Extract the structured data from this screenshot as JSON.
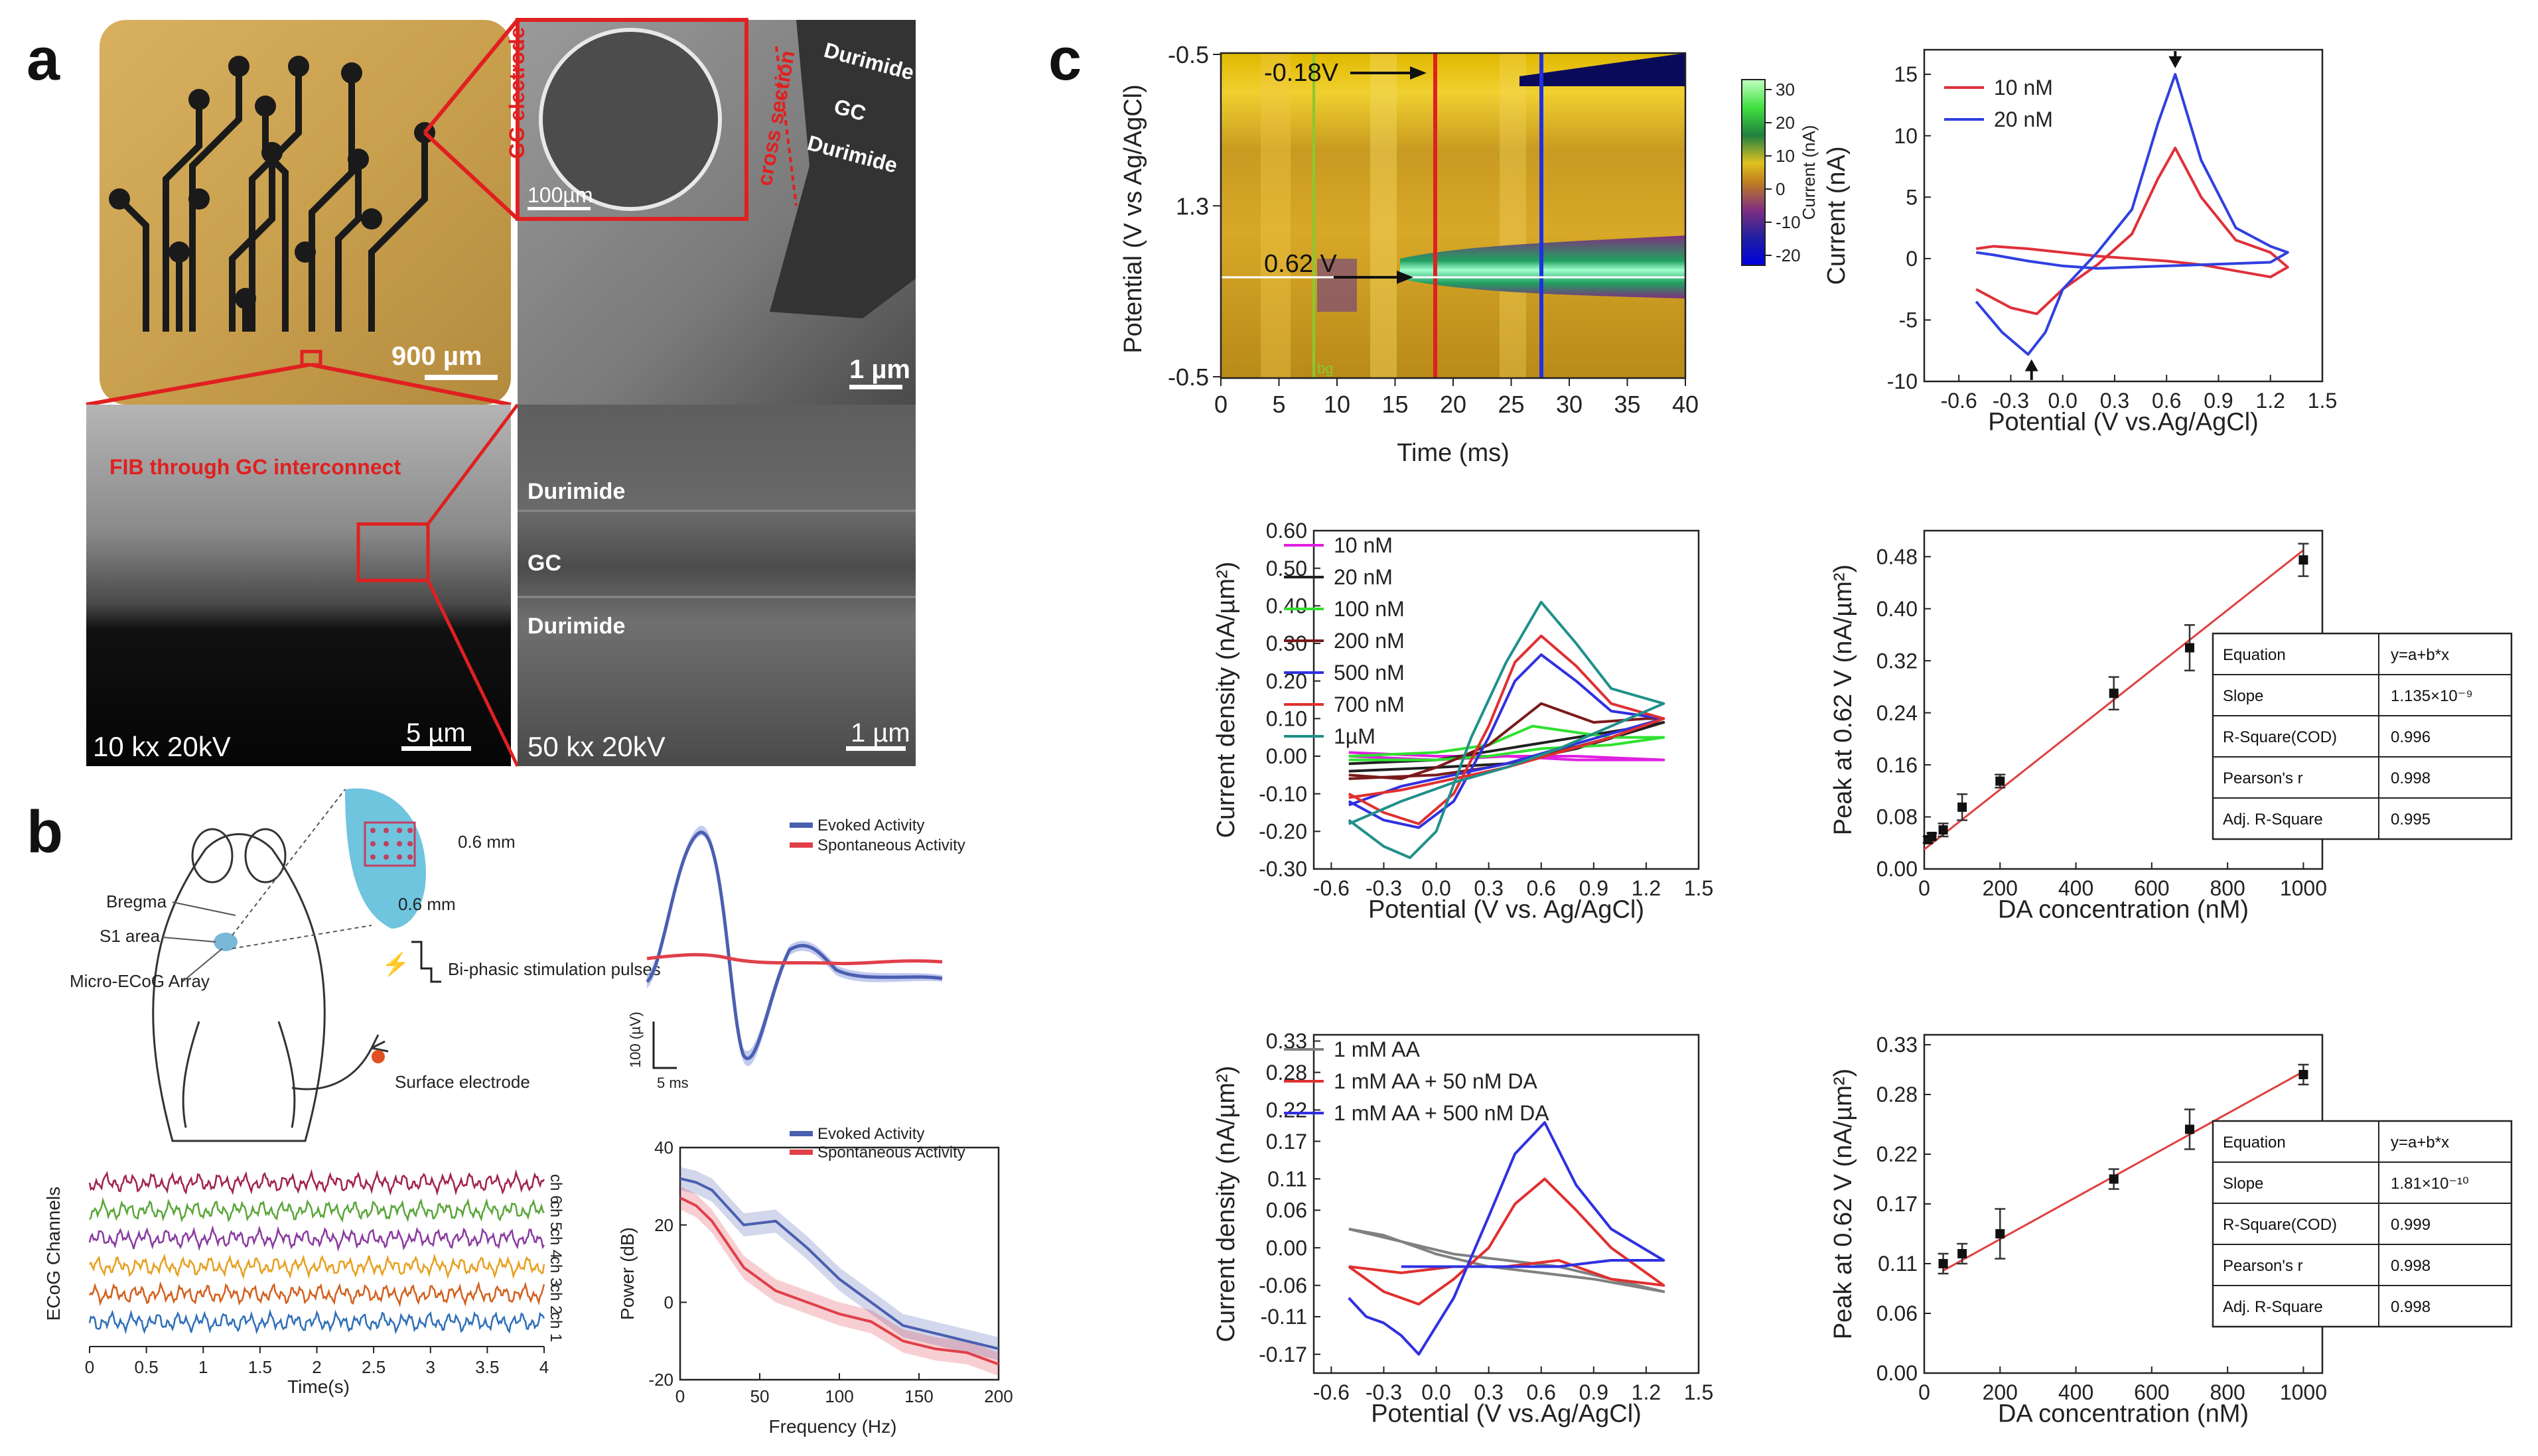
{
  "panel_letters": {
    "a": "a",
    "b": "b",
    "c": "c"
  },
  "panel_a": {
    "scalebar_photo": "900 µm",
    "label_gc_electrode": "GC electrode",
    "label_cross_section": "cross section",
    "sem_top_scalebar_small": "100µm",
    "sem_top_layers": [
      "Durimide",
      "GC",
      "Durimide"
    ],
    "sem_top_scalebar": "1 µm",
    "fib_label": "FIB through GC interconnect",
    "fib_mag": "10 kx 20kV",
    "fib_scalebar": "5 µm",
    "zoom_layers": [
      "Durimide",
      "GC",
      "Durimide"
    ],
    "zoom_mag": "50 kx 20kV",
    "zoom_scalebar": "1 µm"
  },
  "panel_b": {
    "schematic_labels": {
      "bregma": "Bregma",
      "s1": "S1 area",
      "array": "Micro-ECoG Array",
      "dim1": "0.6 mm",
      "dim2": "0.6 mm",
      "stim": "Bi-phasic stimulation pulses",
      "surface": "Surface electrode"
    },
    "evoked_legend": [
      "Evoked Activity",
      "Spontaneous Activity"
    ],
    "evoked_scale_v": "100 (µV)",
    "evoked_scale_t": "5 ms",
    "ecog": {
      "ylabel": "ECoG Channels",
      "xlabel": "Time(s)",
      "xticks": [
        "0",
        "0.5",
        "1",
        "1.5",
        "2",
        "2.5",
        "3",
        "3.5",
        "4"
      ],
      "channels": [
        "ch 6",
        "ch 5",
        "ch 4",
        "ch 3",
        "ch 2",
        "ch 1"
      ],
      "colors": [
        "#a0234a",
        "#5aa53a",
        "#8a3aa0",
        "#e6a020",
        "#d2601e",
        "#2f6fb8"
      ]
    }
  },
  "panel_c": {
    "heatmap": {
      "ylabel": "Potential (V vs Ag/AgCl)",
      "xlabel": "Time (ms)",
      "yticks": [
        "-0.5",
        "1.3",
        "-0.5"
      ],
      "xticks": [
        "0",
        "5",
        "10",
        "15",
        "20",
        "25",
        "30",
        "35",
        "40"
      ],
      "ann1": "-0.18V",
      "ann2": "0.62 V",
      "bg": "bg",
      "colorbar_label": "Current (nA)",
      "colorbar_ticks": [
        "30",
        "20",
        "10",
        "0",
        "-10",
        "-20"
      ]
    },
    "table_labels": [
      "Equation",
      "Slope",
      "R-Square(COD)",
      "Pearson's r",
      "Adj. R-Square"
    ]
  },
  "chart_data": [
    {
      "id": "b-power",
      "type": "line",
      "title": "",
      "xlabel": "Frequency (Hz)",
      "ylabel": "Power (dB)",
      "xlim": [
        0,
        200
      ],
      "ylim": [
        -20,
        40
      ],
      "xticks": [
        "0",
        "50",
        "100",
        "150",
        "200"
      ],
      "yticks": [
        "40",
        "20",
        "0",
        "-20"
      ],
      "series": [
        {
          "name": "Evoked Activity",
          "color": "#4a5fb0",
          "x": [
            0,
            10,
            20,
            40,
            60,
            80,
            100,
            120,
            140,
            160,
            180,
            200
          ],
          "y": [
            32,
            31,
            29,
            20,
            21,
            14,
            6,
            0,
            -6,
            -8,
            -10,
            -12
          ]
        },
        {
          "name": "Spontaneous Activity",
          "color": "#e0404a",
          "x": [
            0,
            10,
            20,
            40,
            60,
            80,
            100,
            120,
            140,
            160,
            180,
            200
          ],
          "y": [
            27,
            25,
            21,
            9,
            3,
            0,
            -3,
            -5,
            -10,
            -12,
            -13,
            -16
          ]
        }
      ]
    },
    {
      "id": "c-cv1",
      "type": "line",
      "title": "",
      "xlabel": "Potential (V vs.Ag/AgCl)",
      "ylabel": "Current (nA)",
      "xlim": [
        -0.8,
        1.5
      ],
      "ylim": [
        -10,
        17
      ],
      "xticks": [
        "-0.6",
        "-0.3",
        "0.0",
        "0.3",
        "0.6",
        "0.9",
        "1.2",
        "1.5"
      ],
      "yticks": [
        "15",
        "10",
        "5",
        "0",
        "-5",
        "-10"
      ],
      "series": [
        {
          "name": "10 nM",
          "color": "#e0303a",
          "x": [
            -0.5,
            -0.3,
            -0.15,
            0.0,
            0.2,
            0.4,
            0.55,
            0.65,
            0.8,
            1.0,
            1.2,
            1.3,
            1.2,
            1.0,
            0.8,
            0.6,
            0.4,
            0.2,
            0.0,
            -0.2,
            -0.4,
            -0.5
          ],
          "y": [
            -2.5,
            -4.0,
            -4.5,
            -2.5,
            -0.5,
            2.0,
            6.5,
            9.0,
            5.0,
            1.5,
            0.5,
            -0.7,
            -1.5,
            -1.0,
            -0.5,
            -0.2,
            0.0,
            0.2,
            0.5,
            0.8,
            1.0,
            0.8
          ]
        },
        {
          "name": "20 nM",
          "color": "#3040e0",
          "x": [
            -0.5,
            -0.35,
            -0.2,
            -0.1,
            0.0,
            0.2,
            0.4,
            0.55,
            0.65,
            0.8,
            1.0,
            1.2,
            1.3,
            1.2,
            1.0,
            0.8,
            0.6,
            0.4,
            0.2,
            0.0,
            -0.2,
            -0.4,
            -0.5
          ],
          "y": [
            -3.5,
            -6.0,
            -7.8,
            -6.0,
            -2.5,
            0.5,
            4.0,
            11.0,
            15.0,
            8.0,
            2.5,
            1.0,
            0.5,
            -0.3,
            -0.4,
            -0.5,
            -0.6,
            -0.7,
            -0.8,
            -0.6,
            -0.2,
            0.3,
            0.5
          ]
        }
      ]
    },
    {
      "id": "c-cv2",
      "type": "line",
      "title": "",
      "xlabel": "Potential (V vs. Ag/AgCl)",
      "ylabel": "Current density (nA/µm²)",
      "xlim": [
        -0.7,
        1.5
      ],
      "ylim": [
        -0.3,
        0.6
      ],
      "xticks": [
        "-0.6",
        "-0.3",
        "0.0",
        "0.3",
        "0.6",
        "0.9",
        "1.2",
        "1.5"
      ],
      "yticks": [
        "0.60",
        "0.50",
        "0.40",
        "0.30",
        "0.20",
        "0.10",
        "0.00",
        "-0.10",
        "-0.20",
        "-0.30"
      ],
      "series": [
        {
          "name": "10 nM",
          "color": "#e020e0",
          "x": [
            -0.5,
            0.0,
            0.4,
            0.8,
            1.3,
            0.8,
            0.4,
            0.0,
            -0.5
          ],
          "y": [
            0.01,
            0.0,
            0.0,
            -0.01,
            -0.01,
            0.0,
            0.0,
            -0.01,
            0.0
          ]
        },
        {
          "name": "20 nM",
          "color": "#202020",
          "x": [
            -0.5,
            0.0,
            0.4,
            0.8,
            1.2,
            1.3,
            0.8,
            0.4,
            0.0,
            -0.5
          ],
          "y": [
            -0.02,
            -0.01,
            0.02,
            0.05,
            0.08,
            0.09,
            0.02,
            -0.02,
            -0.03,
            -0.04
          ]
        },
        {
          "name": "100 nM",
          "color": "#30e030",
          "x": [
            -0.5,
            0.0,
            0.3,
            0.55,
            0.7,
            1.0,
            1.3,
            1.0,
            0.6,
            0.3,
            0.0,
            -0.5
          ],
          "y": [
            0.0,
            0.01,
            0.03,
            0.08,
            0.07,
            0.05,
            0.05,
            0.03,
            0.02,
            0.0,
            -0.01,
            -0.01
          ]
        },
        {
          "name": "200 nM",
          "color": "#7a1a1a",
          "x": [
            -0.5,
            -0.2,
            0.0,
            0.3,
            0.6,
            0.9,
            1.2,
            1.3,
            1.0,
            0.6,
            0.3,
            0.0,
            -0.5
          ],
          "y": [
            -0.05,
            -0.06,
            -0.03,
            0.03,
            0.14,
            0.09,
            0.1,
            0.1,
            0.05,
            0.0,
            -0.03,
            -0.05,
            -0.06
          ]
        },
        {
          "name": "500 nM",
          "color": "#3030e0",
          "x": [
            -0.5,
            -0.3,
            -0.1,
            0.1,
            0.3,
            0.45,
            0.6,
            0.8,
            1.0,
            1.3,
            1.0,
            0.7,
            0.4,
            0.1,
            -0.2,
            -0.5
          ],
          "y": [
            -0.12,
            -0.17,
            -0.19,
            -0.12,
            0.05,
            0.2,
            0.27,
            0.2,
            0.12,
            0.1,
            0.06,
            0.02,
            -0.02,
            -0.05,
            -0.08,
            -0.13
          ]
        },
        {
          "name": "700 nM",
          "color": "#e03030",
          "x": [
            -0.5,
            -0.3,
            -0.1,
            0.1,
            0.3,
            0.45,
            0.6,
            0.8,
            1.0,
            1.3,
            1.0,
            0.7,
            0.4,
            0.1,
            -0.2,
            -0.5
          ],
          "y": [
            -0.1,
            -0.15,
            -0.18,
            -0.1,
            0.08,
            0.25,
            0.32,
            0.24,
            0.14,
            0.1,
            0.05,
            0.01,
            -0.03,
            -0.06,
            -0.09,
            -0.11
          ]
        },
        {
          "name": "1µM",
          "color": "#20908a",
          "x": [
            -0.5,
            -0.3,
            -0.15,
            0.0,
            0.2,
            0.4,
            0.6,
            0.8,
            1.0,
            1.3,
            1.0,
            0.7,
            0.4,
            0.1,
            -0.2,
            -0.5
          ],
          "y": [
            -0.17,
            -0.24,
            -0.27,
            -0.2,
            0.05,
            0.25,
            0.41,
            0.3,
            0.18,
            0.14,
            0.08,
            0.02,
            -0.03,
            -0.07,
            -0.12,
            -0.18
          ]
        }
      ]
    },
    {
      "id": "c-fit1",
      "type": "scatter",
      "title": "",
      "xlabel": "DA concentration (nM)",
      "ylabel": "Peak at 0.62 V (nA/µm²)",
      "xlim": [
        0,
        1050
      ],
      "ylim": [
        0,
        0.52
      ],
      "xticks": [
        "0",
        "200",
        "400",
        "600",
        "800",
        "1000"
      ],
      "yticks": [
        "0.48",
        "0.40",
        "0.32",
        "0.24",
        "0.16",
        "0.08",
        "0.00"
      ],
      "points": {
        "x": [
          10,
          20,
          50,
          100,
          200,
          500,
          700,
          1000
        ],
        "y": [
          0.045,
          0.05,
          0.06,
          0.095,
          0.135,
          0.27,
          0.34,
          0.475
        ],
        "err": [
          0.005,
          0.005,
          0.01,
          0.02,
          0.01,
          0.025,
          0.035,
          0.025
        ]
      },
      "fit": {
        "x": [
          0,
          1000
        ],
        "y": [
          0.03,
          0.49
        ]
      },
      "table": [
        "y=a+b*x",
        "1.135×10⁻⁹",
        "0.996",
        "0.998",
        "0.995"
      ]
    },
    {
      "id": "c-cv3",
      "type": "line",
      "title": "",
      "xlabel": "Potential (V vs.Ag/AgCl)",
      "ylabel": "Current density (nA/µm²)",
      "xlim": [
        -0.7,
        1.5
      ],
      "ylim": [
        -0.2,
        0.34
      ],
      "xticks": [
        "-0.6",
        "-0.3",
        "0.0",
        "0.3",
        "0.6",
        "0.9",
        "1.2",
        "1.5"
      ],
      "yticks": [
        "0.33",
        "0.28",
        "0.22",
        "0.17",
        "0.11",
        "0.06",
        "0.00",
        "-0.06",
        "-0.11",
        "-0.17"
      ],
      "series": [
        {
          "name": "1 mM AA",
          "color": "#808080",
          "x": [
            -0.5,
            -0.3,
            0.0,
            0.3,
            0.6,
            0.9,
            1.3,
            1.0,
            0.7,
            0.4,
            0.1,
            -0.2,
            -0.5
          ],
          "y": [
            0.03,
            0.02,
            -0.01,
            -0.03,
            -0.04,
            -0.05,
            -0.07,
            -0.05,
            -0.03,
            -0.02,
            -0.01,
            0.01,
            0.03
          ]
        },
        {
          "name": "1 mM AA + 50 nM DA",
          "color": "#e03030",
          "x": [
            -0.5,
            -0.3,
            -0.1,
            0.1,
            0.3,
            0.45,
            0.62,
            0.8,
            1.0,
            1.3,
            1.0,
            0.7,
            0.4,
            0.1,
            -0.2,
            -0.5
          ],
          "y": [
            -0.03,
            -0.07,
            -0.09,
            -0.05,
            0.0,
            0.07,
            0.11,
            0.06,
            0.0,
            -0.06,
            -0.05,
            -0.02,
            -0.03,
            -0.03,
            -0.04,
            -0.03
          ]
        },
        {
          "name": "1 mM AA + 500 nM DA",
          "color": "#3030e0",
          "x": [
            -0.5,
            -0.4,
            -0.3,
            -0.2,
            -0.1,
            0.1,
            0.3,
            0.45,
            0.62,
            0.8,
            1.0,
            1.3,
            1.0,
            0.7,
            0.4,
            0.1,
            -0.2
          ],
          "y": [
            -0.08,
            -0.11,
            -0.12,
            -0.14,
            -0.17,
            -0.08,
            0.05,
            0.15,
            0.2,
            0.1,
            0.03,
            -0.02,
            -0.02,
            -0.03,
            -0.03,
            -0.03,
            -0.03
          ]
        }
      ]
    },
    {
      "id": "c-fit2",
      "type": "scatter",
      "title": "",
      "xlabel": "DA concentration (nM)",
      "ylabel": "Peak at 0.62 V (nA/µm²)",
      "xlim": [
        0,
        1050
      ],
      "ylim": [
        0,
        0.34
      ],
      "xticks": [
        "0",
        "200",
        "400",
        "600",
        "800",
        "1000"
      ],
      "yticks": [
        "0.33",
        "0.28",
        "0.22",
        "0.17",
        "0.11",
        "0.06",
        "0.00"
      ],
      "points": {
        "x": [
          50,
          100,
          200,
          500,
          700,
          1000
        ],
        "y": [
          0.11,
          0.12,
          0.14,
          0.195,
          0.245,
          0.3
        ],
        "err": [
          0.01,
          0.01,
          0.025,
          0.01,
          0.02,
          0.01
        ]
      },
      "fit": {
        "x": [
          50,
          1000
        ],
        "y": [
          0.103,
          0.303
        ]
      },
      "table": [
        "y=a+b*x",
        "1.81×10⁻¹⁰",
        "0.999",
        "0.998",
        "0.998"
      ]
    }
  ]
}
